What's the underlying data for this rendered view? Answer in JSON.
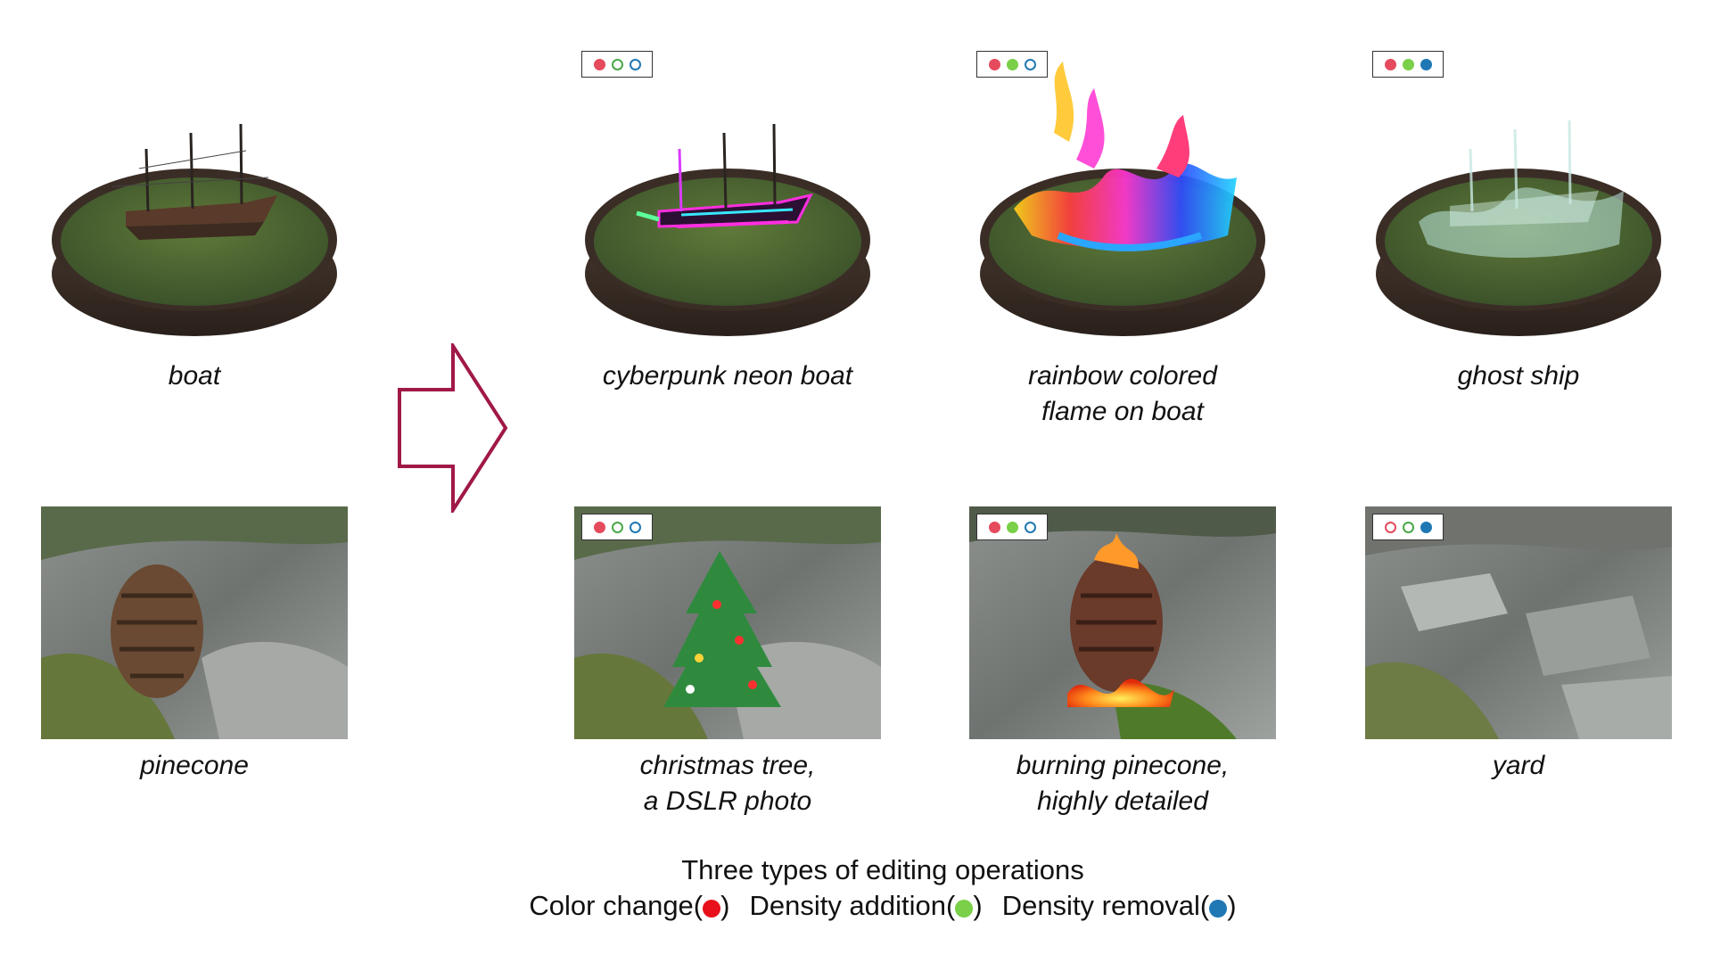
{
  "figure": {
    "originals": [
      {
        "caption": "boat"
      },
      {
        "caption": "pinecone"
      }
    ],
    "edits": [
      {
        "caption_lines": [
          "cyberpunk neon boat"
        ],
        "ops": {
          "color_change": true,
          "density_addition": false,
          "density_removal": false
        }
      },
      {
        "caption_lines": [
          "rainbow colored",
          "flame on boat"
        ],
        "ops": {
          "color_change": true,
          "density_addition": true,
          "density_removal": false
        }
      },
      {
        "caption_lines": [
          "ghost ship"
        ],
        "ops": {
          "color_change": true,
          "density_addition": true,
          "density_removal": true
        }
      },
      {
        "caption_lines": [
          "christmas tree,",
          "a DSLR photo"
        ],
        "ops": {
          "color_change": true,
          "density_addition": false,
          "density_removal": false
        }
      },
      {
        "caption_lines": [
          "burning pinecone,",
          "highly detailed"
        ],
        "ops": {
          "color_change": true,
          "density_addition": true,
          "density_removal": false
        }
      },
      {
        "caption_lines": [
          "yard"
        ],
        "ops": {
          "color_change": false,
          "density_addition": false,
          "density_removal": true
        }
      }
    ],
    "arrow_color": "#a01848"
  },
  "legend": {
    "title": "Three types of editing operations",
    "items": [
      {
        "label_open": "Color change(",
        "label_close": ")",
        "color": "#e8101a"
      },
      {
        "label_open": "Density addition(",
        "label_close": ")",
        "color": "#7ad048"
      },
      {
        "label_open": "Density removal(",
        "label_close": ")",
        "color": "#1f78b4"
      }
    ]
  }
}
